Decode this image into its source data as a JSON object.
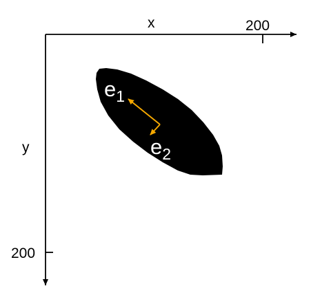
{
  "axes": {
    "x_label": "x",
    "y_label": "y",
    "x_tick_label": "200",
    "y_tick_label": "200"
  },
  "vectors": [
    {
      "symbol": "e",
      "subscript": "1"
    },
    {
      "symbol": "e",
      "subscript": "2"
    }
  ],
  "colors": {
    "blob": "#000000",
    "axes": "#000000",
    "vector_arrow": "#f5a800",
    "vector_label": "#ffffff"
  }
}
